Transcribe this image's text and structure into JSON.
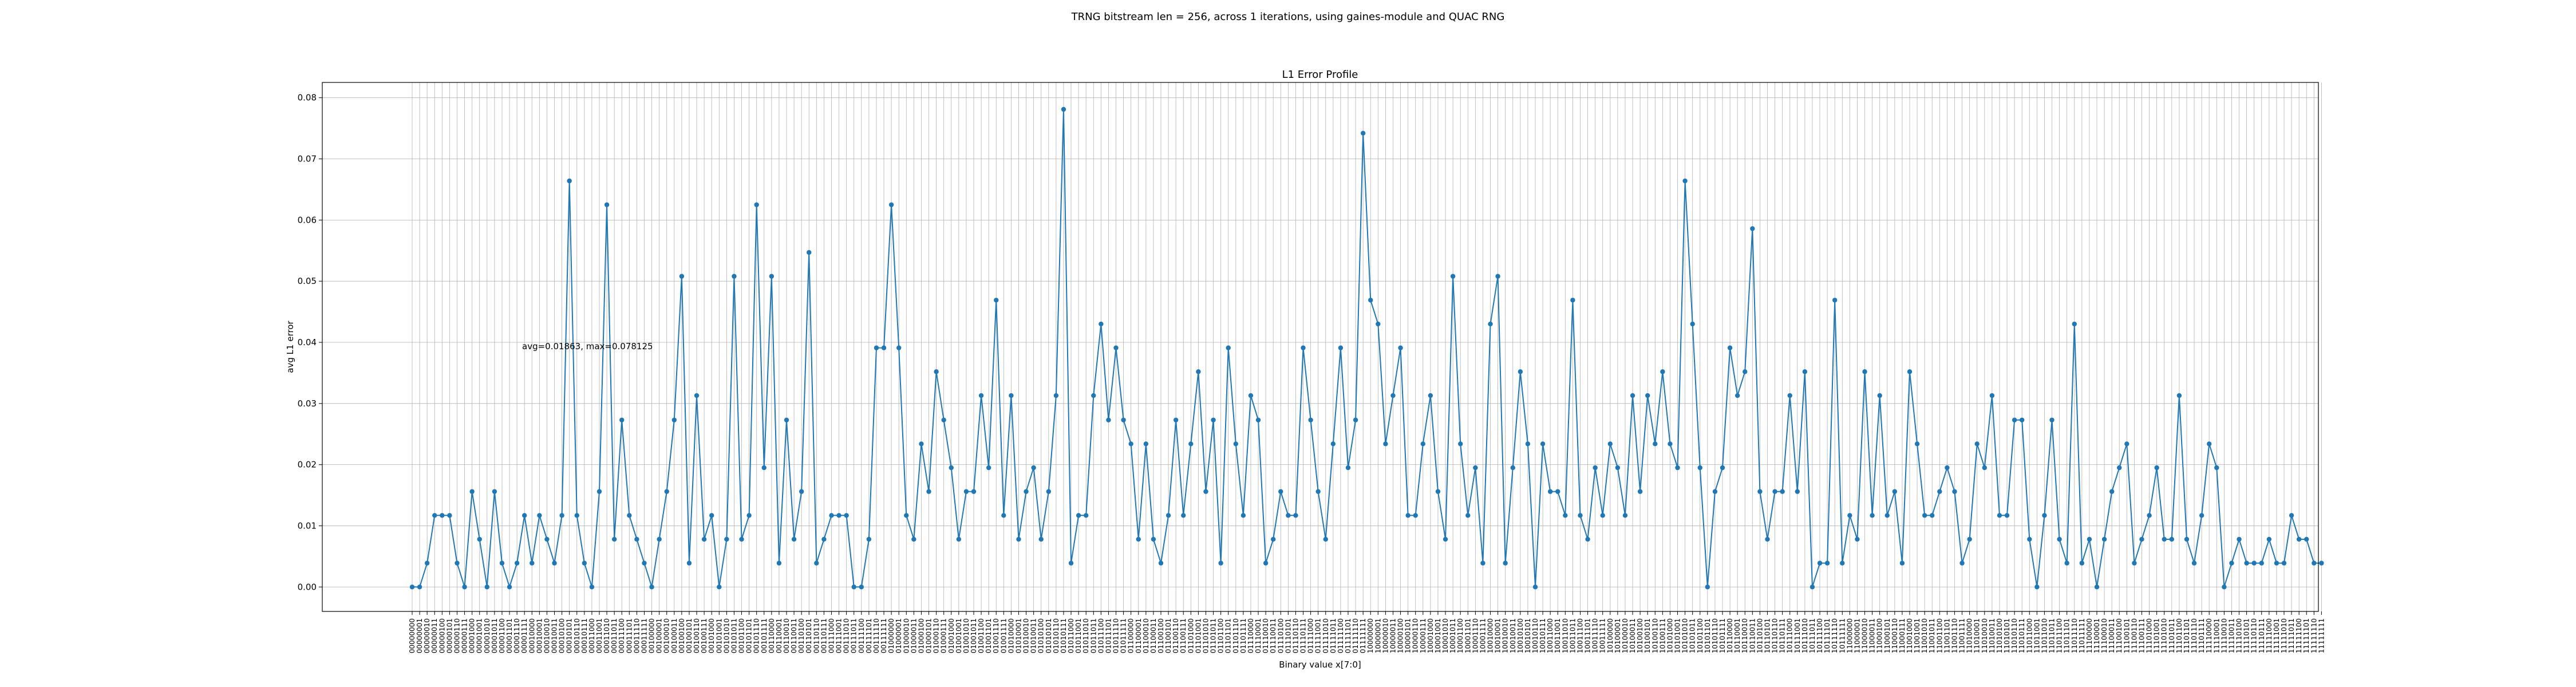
{
  "chart_data": {
    "type": "line",
    "suptitle": "TRNG bitstream len = 256, across 1 iterations, using gaines-module and QUAC RNG",
    "title": "L1 Error Profile",
    "xlabel": "Binary value x[7:0]",
    "ylabel": "avg L1 error",
    "annotation": "avg=0.01863, max=0.078125",
    "ylim": [
      -0.004,
      0.0825
    ],
    "yticks": [
      "0.00",
      "0.01",
      "0.02",
      "0.03",
      "0.04",
      "0.05",
      "0.06",
      "0.07",
      "0.08"
    ],
    "ytick_values": [
      0,
      0.01,
      0.02,
      0.03,
      0.04,
      0.05,
      0.06,
      0.07,
      0.08
    ],
    "grid": true,
    "line_color": "#1f77b4",
    "marker": "circle",
    "x_start": 0,
    "x_count": 256,
    "x_label_format": "8-bit binary",
    "values": [
      0.0,
      0.0,
      0.0039,
      0.0117,
      0.0117,
      0.0117,
      0.0039,
      0.0,
      0.0156,
      0.0078,
      0.0,
      0.0156,
      0.0039,
      0.0,
      0.0039,
      0.0117,
      0.0039,
      0.0117,
      0.0078,
      0.0039,
      0.0117,
      0.0664,
      0.0117,
      0.0039,
      0.0,
      0.0156,
      0.0625,
      0.0078,
      0.0273,
      0.0117,
      0.0078,
      0.0039,
      0.0,
      0.0078,
      0.0156,
      0.0273,
      0.0508,
      0.0039,
      0.0313,
      0.0078,
      0.0117,
      0.0,
      0.0078,
      0.0508,
      0.0078,
      0.0117,
      0.0625,
      0.0195,
      0.0508,
      0.0039,
      0.0273,
      0.0078,
      0.0156,
      0.0547,
      0.0039,
      0.0078,
      0.0117,
      0.0117,
      0.0117,
      0.0,
      0.0,
      0.0078,
      0.0391,
      0.0391,
      0.0625,
      0.0391,
      0.0117,
      0.0078,
      0.0234,
      0.0156,
      0.0352,
      0.0273,
      0.0195,
      0.0078,
      0.0156,
      0.0156,
      0.0313,
      0.0195,
      0.0469,
      0.0117,
      0.0313,
      0.0078,
      0.0156,
      0.0195,
      0.0078,
      0.0156,
      0.0313,
      0.0781,
      0.0039,
      0.0117,
      0.0117,
      0.0313,
      0.043,
      0.0273,
      0.0391,
      0.0273,
      0.0234,
      0.0078,
      0.0234,
      0.0078,
      0.0039,
      0.0117,
      0.0273,
      0.0117,
      0.0234,
      0.0352,
      0.0156,
      0.0273,
      0.0039,
      0.0391,
      0.0234,
      0.0117,
      0.0313,
      0.0273,
      0.0039,
      0.0078,
      0.0156,
      0.0117,
      0.0117,
      0.0391,
      0.0273,
      0.0156,
      0.0078,
      0.0234,
      0.0391,
      0.0195,
      0.0273,
      0.0742,
      0.0469,
      0.043,
      0.0234,
      0.0313,
      0.0391,
      0.0117,
      0.0117,
      0.0234,
      0.0313,
      0.0156,
      0.0078,
      0.0508,
      0.0234,
      0.0117,
      0.0195,
      0.0039,
      0.043,
      0.0508,
      0.0039,
      0.0195,
      0.0352,
      0.0234,
      0.0,
      0.0234,
      0.0156,
      0.0156,
      0.0117,
      0.0469,
      0.0117,
      0.0078,
      0.0195,
      0.0117,
      0.0234,
      0.0195,
      0.0117,
      0.0313,
      0.0156,
      0.0313,
      0.0234,
      0.0352,
      0.0234,
      0.0195,
      0.0664,
      0.043,
      0.0195,
      0.0,
      0.0156,
      0.0195,
      0.0391,
      0.0313,
      0.0352,
      0.0586,
      0.0156,
      0.0078,
      0.0156,
      0.0156,
      0.0313,
      0.0156,
      0.0352,
      0.0,
      0.0039,
      0.0039,
      0.0469,
      0.0039,
      0.0117,
      0.0078,
      0.0352,
      0.0117,
      0.0313,
      0.0117,
      0.0156,
      0.0039,
      0.0352,
      0.0234,
      0.0117,
      0.0117,
      0.0156,
      0.0195,
      0.0156,
      0.0039,
      0.0078,
      0.0234,
      0.0195,
      0.0313,
      0.0117,
      0.0117,
      0.0273,
      0.0273,
      0.0078,
      0.0,
      0.0117,
      0.0273,
      0.0078,
      0.0039,
      0.043,
      0.0039,
      0.0078,
      0.0,
      0.0078,
      0.0156,
      0.0195,
      0.0234,
      0.0039,
      0.0078,
      0.0117,
      0.0195,
      0.0078,
      0.0078,
      0.0313,
      0.0078,
      0.0039,
      0.0117,
      0.0234,
      0.0195,
      0.0,
      0.0039,
      0.0078,
      0.0039,
      0.0039,
      0.0039,
      0.0078,
      0.0039,
      0.0039,
      0.0117,
      0.0078,
      0.0078,
      0.0039,
      0.0039
    ]
  }
}
